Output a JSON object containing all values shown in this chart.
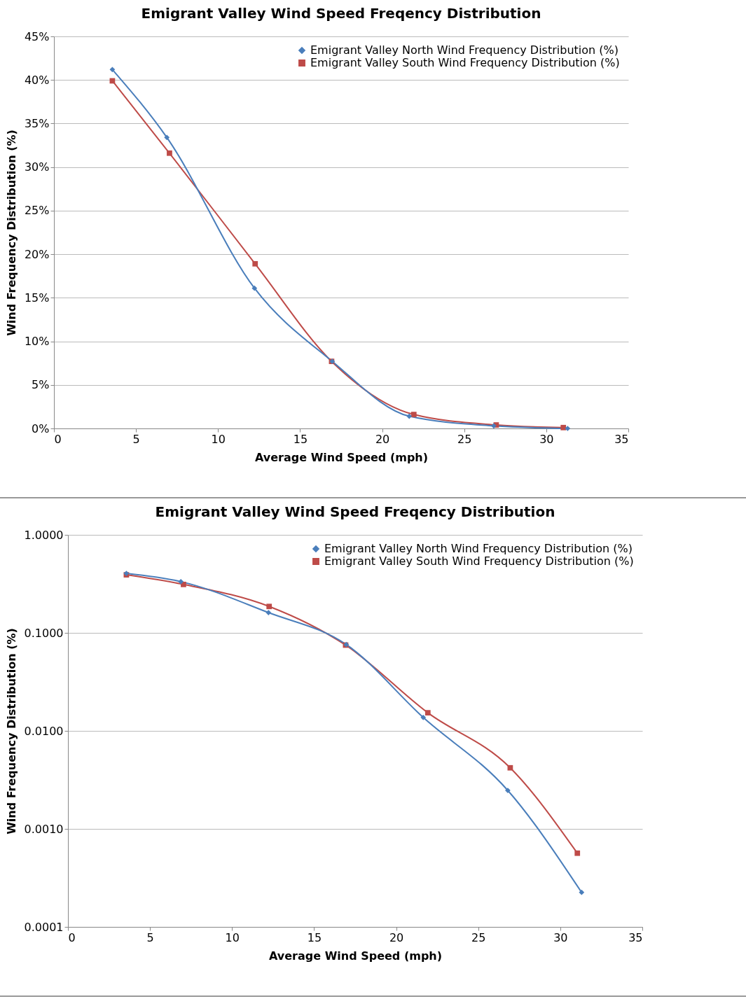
{
  "chart_data": [
    {
      "type": "line",
      "title": "Emigrant Valley Wind Speed Freqency Distribution",
      "xlabel": "Average Wind Speed (mph)",
      "ylabel": "Wind Frequency Distribution (%)",
      "xlim": [
        0,
        35
      ],
      "xticks": [
        0,
        5,
        10,
        15,
        20,
        25,
        30,
        35
      ],
      "ylim": [
        0,
        45
      ],
      "yticks": [
        {
          "value": 0,
          "label": "0%"
        },
        {
          "value": 5,
          "label": "5%"
        },
        {
          "value": 10,
          "label": "10%"
        },
        {
          "value": 15,
          "label": "15%"
        },
        {
          "value": 20,
          "label": "20%"
        },
        {
          "value": 25,
          "label": "25%"
        },
        {
          "value": 30,
          "label": "30%"
        },
        {
          "value": 35,
          "label": "35%"
        },
        {
          "value": 40,
          "label": "40%"
        },
        {
          "value": 45,
          "label": "45%"
        }
      ],
      "grid": "y",
      "legend": "top right",
      "series": [
        {
          "name": "Emigrant Valley North Wind Frequency Distribution (%)",
          "color": "#4a7ebb",
          "marker": "diamond",
          "x": [
            3.56,
            6.88,
            12.22,
            16.96,
            21.65,
            26.8,
            31.3
          ],
          "values": [
            41.2,
            33.4,
            16.1,
            7.7,
            1.4,
            0.3,
            0.0
          ]
        },
        {
          "name": "Emigrant Valley South Wind Frequency Distribution (%)",
          "color": "#be4b48",
          "marker": "square",
          "x": [
            3.56,
            7.04,
            12.26,
            16.92,
            21.93,
            26.95,
            31.04
          ],
          "values": [
            39.9,
            31.6,
            18.9,
            7.7,
            1.6,
            0.4,
            0.1
          ]
        }
      ]
    },
    {
      "type": "line",
      "title": "Emigrant Valley Wind Speed Freqency Distribution",
      "xlabel": "Average Wind Speed (mph)",
      "ylabel": "Wind Frequency Distribution (%)",
      "log": "y",
      "xlim": [
        0,
        35
      ],
      "xticks": [
        0,
        5,
        10,
        15,
        20,
        25,
        30,
        35
      ],
      "ylim": [
        0.0001,
        1
      ],
      "yticks": [
        {
          "value": 0.0001,
          "label": "0.0001"
        },
        {
          "value": 0.001,
          "label": "0.0010"
        },
        {
          "value": 0.01,
          "label": "0.0100"
        },
        {
          "value": 0.1,
          "label": "0.1000"
        },
        {
          "value": 1,
          "label": "1.0000"
        }
      ],
      "grid": "y",
      "legend": "top right",
      "series": [
        {
          "name": "Emigrant Valley North Wind Frequency Distribution (%)",
          "color": "#4a7ebb",
          "marker": "diamond",
          "x": [
            3.56,
            6.88,
            12.22,
            16.96,
            21.65,
            26.8,
            31.3
          ],
          "values": [
            0.404,
            0.333,
            0.161,
            0.076,
            0.0137,
            0.00247,
            0.000225
          ]
        },
        {
          "name": "Emigrant Valley South Wind Frequency Distribution (%)",
          "color": "#be4b48",
          "marker": "square",
          "x": [
            3.56,
            7.04,
            12.26,
            16.92,
            21.93,
            26.95,
            31.04
          ],
          "values": [
            0.391,
            0.312,
            0.186,
            0.075,
            0.0153,
            0.0042,
            0.000565
          ]
        }
      ]
    }
  ]
}
